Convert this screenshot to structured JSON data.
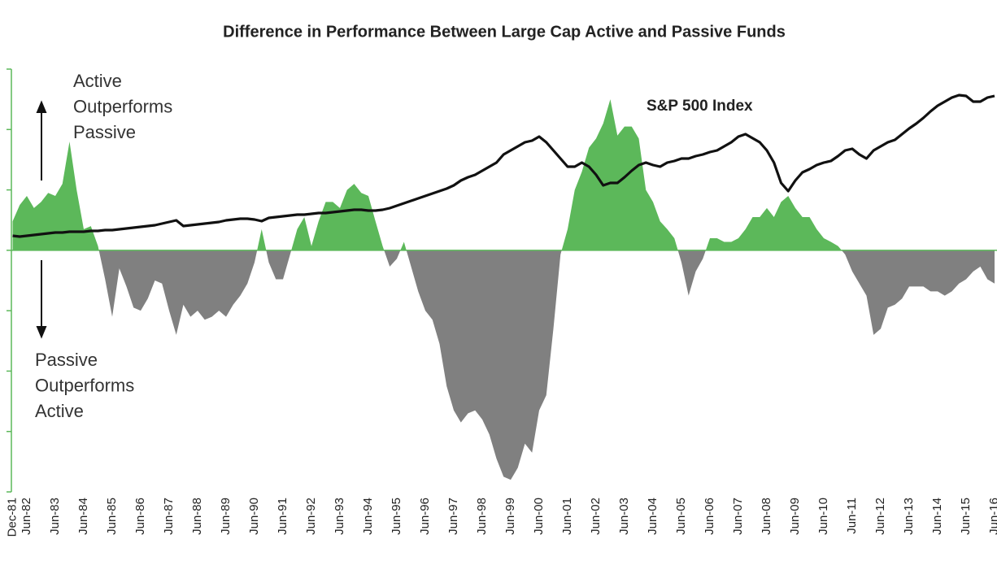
{
  "chart_data": {
    "type": "area",
    "title": "Difference in Performance Between Large Cap Active and Passive Funds",
    "active_note": [
      "Active",
      "Outperforms",
      "Passive"
    ],
    "passive_note": [
      "Passive",
      "Outperforms",
      "Active"
    ],
    "categories": [
      "Dec-81",
      null,
      "Jun-82",
      null,
      null,
      null,
      "Jun-83",
      null,
      null,
      null,
      "Jun-84",
      null,
      null,
      null,
      "Jun-85",
      null,
      null,
      null,
      "Jun-86",
      null,
      null,
      null,
      "Jun-87",
      null,
      null,
      null,
      "Jun-88",
      null,
      null,
      null,
      "Jun-89",
      null,
      null,
      null,
      "Jun-90",
      null,
      null,
      null,
      "Jun-91",
      null,
      null,
      null,
      "Jun-92",
      null,
      null,
      null,
      "Jun-93",
      null,
      null,
      null,
      "Jun-94",
      null,
      null,
      null,
      "Jun-95",
      null,
      null,
      null,
      "Jun-96",
      null,
      null,
      null,
      "Jun-97",
      null,
      null,
      null,
      "Jun-98",
      null,
      null,
      null,
      "Jun-99",
      null,
      null,
      null,
      "Jun-00",
      null,
      null,
      null,
      "Jun-01",
      null,
      null,
      null,
      "Jun-02",
      null,
      null,
      null,
      "Jun-03",
      null,
      null,
      null,
      "Jun-04",
      null,
      null,
      null,
      "Jun-05",
      null,
      null,
      null,
      "Jun-06",
      null,
      null,
      null,
      "Jun-07",
      null,
      null,
      null,
      "Jun-08",
      null,
      null,
      null,
      "Jun-09",
      null,
      null,
      null,
      "Jun-10",
      null,
      null,
      null,
      "Jun-11",
      null,
      null,
      null,
      "Jun-12",
      null,
      null,
      null,
      "Jun-13",
      null,
      null,
      null,
      "Jun-14",
      null,
      null,
      null,
      "Jun-15",
      null,
      null,
      null,
      "Jun-16"
    ],
    "series": [
      {
        "color": "#5cb85a",
        "negative_color": "#808080",
        "values": [
          0.48,
          0.75,
          0.9,
          0.7,
          0.8,
          0.95,
          0.9,
          1.1,
          1.8,
          1.0,
          0.35,
          0.4,
          0.07,
          -0.48,
          -1.1,
          -0.3,
          -0.6,
          -0.95,
          -1.0,
          -0.8,
          -0.5,
          -0.55,
          -1.0,
          -1.4,
          -0.9,
          -1.1,
          -1.0,
          -1.15,
          -1.1,
          -1.0,
          -1.1,
          -0.9,
          -0.75,
          -0.55,
          -0.2,
          0.35,
          -0.2,
          -0.48,
          -0.48,
          -0.07,
          0.35,
          0.55,
          0.07,
          0.48,
          0.8,
          0.8,
          0.7,
          1.0,
          1.1,
          0.95,
          0.9,
          0.48,
          0.07,
          -0.27,
          -0.14,
          0.14,
          -0.27,
          -0.68,
          -1.0,
          -1.15,
          -1.55,
          -2.25,
          -2.65,
          -2.85,
          -2.7,
          -2.65,
          -2.8,
          -3.05,
          -3.45,
          -3.75,
          -3.8,
          -3.6,
          -3.2,
          -3.35,
          -2.65,
          -2.4,
          -1.3,
          -0.07,
          0.35,
          1.0,
          1.3,
          1.7,
          1.85,
          2.1,
          2.5,
          1.9,
          2.05,
          2.05,
          1.85,
          1.0,
          0.8,
          0.48,
          0.35,
          0.2,
          -0.2,
          -0.75,
          -0.35,
          -0.14,
          0.2,
          0.2,
          0.14,
          0.14,
          0.2,
          0.35,
          0.55,
          0.55,
          0.7,
          0.55,
          0.8,
          0.9,
          0.7,
          0.55,
          0.55,
          0.35,
          0.2,
          0.14,
          0.07,
          -0.07,
          -0.35,
          -0.55,
          -0.75,
          -1.4,
          -1.3,
          -0.95,
          -0.9,
          -0.8,
          -0.6,
          -0.6,
          -0.6,
          -0.68,
          -0.68,
          -0.75,
          -0.68,
          -0.55,
          -0.48,
          -0.35,
          -0.27,
          -0.48,
          -0.55
        ]
      },
      {
        "name": "S&P 500 Index",
        "type": "line",
        "axis": "y2",
        "color": "#111111",
        "values": [
          315,
          314,
          315,
          316,
          317,
          318,
          319,
          319,
          320,
          320,
          320,
          321,
          321,
          322,
          322,
          323,
          324,
          325,
          326,
          327,
          328,
          330,
          332,
          334,
          327,
          328,
          329,
          330,
          331,
          332,
          334,
          335,
          336,
          336,
          335,
          333,
          337,
          338,
          339,
          340,
          341,
          341,
          342,
          343,
          343,
          344,
          345,
          346,
          347,
          347,
          346,
          346,
          347,
          349,
          352,
          355,
          358,
          361,
          364,
          367,
          370,
          373,
          377,
          383,
          387,
          390,
          395,
          400,
          405,
          415,
          420,
          425,
          430,
          432,
          437,
          430,
          420,
          410,
          400,
          400,
          405,
          400,
          390,
          377,
          380,
          380,
          387,
          395,
          402,
          405,
          402,
          400,
          405,
          407,
          410,
          410,
          413,
          415,
          418,
          420,
          425,
          430,
          437,
          440,
          435,
          430,
          420,
          405,
          380,
          370,
          383,
          393,
          397,
          402,
          405,
          407,
          413,
          420,
          422,
          415,
          410,
          420,
          425,
          430,
          433,
          440,
          447,
          453,
          460,
          468,
          475,
          480,
          485,
          488,
          487,
          480,
          480,
          485,
          487
        ]
      }
    ],
    "ylim": [
      -4,
      3
    ],
    "yticks": [
      -4,
      -3,
      -2,
      -1,
      0,
      1,
      2,
      3
    ],
    "y2lim": [
      0,
      520
    ]
  }
}
